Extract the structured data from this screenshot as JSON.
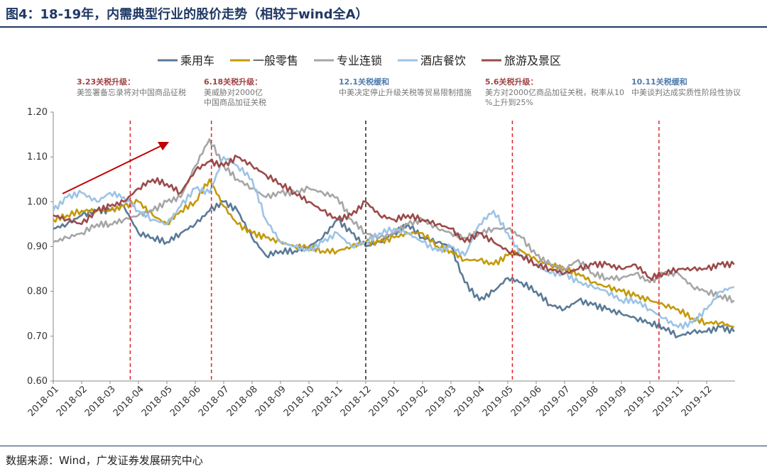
{
  "title": "图4：18-19年，内需典型行业的股价走势（相较于wind全A）",
  "source": "数据来源：Wind，广发证券发展研究中心",
  "chart_data": {
    "type": "line",
    "title": "图4：18-19年，内需典型行业的股价走势（相较于wind全A）",
    "xlabel": "",
    "ylabel": "",
    "ylim": [
      0.6,
      1.2
    ],
    "yticks": [
      "0.60",
      "0.70",
      "0.80",
      "0.90",
      "1.00",
      "1.10",
      "1.20"
    ],
    "xticks": [
      "2018-01",
      "2018-02",
      "2018-03",
      "2018-04",
      "2018-05",
      "2018-06",
      "2018-07",
      "2018-08",
      "2018-09",
      "2018-10",
      "2018-11",
      "2018-12",
      "2019-01",
      "2019-02",
      "2019-03",
      "2019-04",
      "2019-05",
      "2019-06",
      "2019-07",
      "2019-08",
      "2019-09",
      "2019-10",
      "2019-11",
      "2019-12"
    ],
    "grid": false,
    "legend_position": "top",
    "x": [
      "2018-01-01",
      "2018-01-16",
      "2018-02-01",
      "2018-02-16",
      "2018-03-01",
      "2018-03-16",
      "2018-04-01",
      "2018-04-16",
      "2018-05-01",
      "2018-05-16",
      "2018-06-01",
      "2018-06-16",
      "2018-07-01",
      "2018-07-16",
      "2018-08-01",
      "2018-08-16",
      "2018-09-01",
      "2018-09-16",
      "2018-10-01",
      "2018-10-16",
      "2018-11-01",
      "2018-11-16",
      "2018-12-01",
      "2018-12-16",
      "2019-01-01",
      "2019-01-16",
      "2019-02-01",
      "2019-02-16",
      "2019-03-01",
      "2019-03-16",
      "2019-04-01",
      "2019-04-16",
      "2019-05-01",
      "2019-05-16",
      "2019-06-01",
      "2019-06-16",
      "2019-07-01",
      "2019-07-16",
      "2019-08-01",
      "2019-08-16",
      "2019-09-01",
      "2019-09-16",
      "2019-10-01",
      "2019-10-16",
      "2019-11-01",
      "2019-11-16",
      "2019-12-01",
      "2019-12-16",
      "2019-12-31"
    ],
    "series": [
      {
        "name": "乘用车",
        "color": "#5a7a96",
        "values": [
          0.94,
          0.95,
          0.97,
          0.98,
          0.98,
          0.99,
          0.93,
          0.92,
          0.91,
          0.93,
          0.95,
          0.98,
          1.0,
          0.98,
          0.92,
          0.88,
          0.89,
          0.89,
          0.9,
          0.92,
          0.96,
          0.93,
          0.9,
          0.91,
          0.93,
          0.95,
          0.92,
          0.91,
          0.9,
          0.82,
          0.78,
          0.8,
          0.83,
          0.82,
          0.8,
          0.77,
          0.76,
          0.78,
          0.77,
          0.76,
          0.75,
          0.74,
          0.73,
          0.72,
          0.7,
          0.71,
          0.71,
          0.72,
          0.71
        ]
      },
      {
        "name": "一般零售",
        "color": "#c49a0a",
        "values": [
          0.96,
          0.97,
          0.98,
          0.98,
          0.98,
          0.99,
          1.0,
          0.97,
          0.95,
          0.98,
          1.0,
          1.05,
          0.99,
          0.95,
          0.93,
          0.92,
          0.91,
          0.9,
          0.9,
          0.89,
          0.89,
          0.9,
          0.91,
          0.91,
          0.92,
          0.93,
          0.93,
          0.9,
          0.89,
          0.87,
          0.87,
          0.86,
          0.88,
          0.89,
          0.87,
          0.86,
          0.85,
          0.84,
          0.82,
          0.81,
          0.8,
          0.79,
          0.78,
          0.77,
          0.76,
          0.74,
          0.73,
          0.73,
          0.72
        ]
      },
      {
        "name": "专业连锁",
        "color": "#a6a6a6",
        "values": [
          0.91,
          0.92,
          0.93,
          0.95,
          0.95,
          0.96,
          0.97,
          0.98,
          1.0,
          1.01,
          1.08,
          1.14,
          1.08,
          1.05,
          1.03,
          1.01,
          1.02,
          1.02,
          1.03,
          1.02,
          1.01,
          0.96,
          0.93,
          0.92,
          0.93,
          0.95,
          0.96,
          0.94,
          0.93,
          0.92,
          0.93,
          0.94,
          0.94,
          0.92,
          0.88,
          0.86,
          0.85,
          0.87,
          0.84,
          0.83,
          0.83,
          0.84,
          0.82,
          0.84,
          0.84,
          0.81,
          0.8,
          0.79,
          0.78
        ]
      },
      {
        "name": "酒店餐饮",
        "color": "#9dc3e6",
        "values": [
          0.98,
          1.01,
          1.02,
          1.0,
          1.02,
          1.01,
          0.98,
          0.96,
          0.95,
          0.99,
          1.03,
          1.02,
          1.1,
          1.08,
          1.05,
          0.96,
          0.91,
          0.9,
          0.89,
          0.91,
          0.93,
          0.9,
          0.91,
          0.93,
          0.94,
          0.93,
          0.91,
          0.89,
          0.9,
          0.88,
          0.95,
          0.98,
          0.93,
          0.88,
          0.86,
          0.84,
          0.84,
          0.82,
          0.81,
          0.8,
          0.78,
          0.78,
          0.76,
          0.74,
          0.72,
          0.73,
          0.76,
          0.8,
          0.81
        ]
      },
      {
        "name": "旅游及景区",
        "color": "#9b4a4a",
        "values": [
          0.97,
          0.96,
          0.95,
          0.98,
          0.99,
          1.0,
          1.03,
          1.05,
          1.04,
          1.02,
          1.07,
          1.09,
          1.08,
          1.1,
          1.08,
          1.06,
          1.04,
          1.02,
          1.0,
          0.98,
          0.96,
          0.97,
          1.0,
          0.97,
          0.96,
          0.97,
          0.96,
          0.95,
          0.94,
          0.91,
          0.93,
          0.91,
          0.89,
          0.88,
          0.86,
          0.85,
          0.84,
          0.85,
          0.86,
          0.86,
          0.85,
          0.86,
          0.83,
          0.84,
          0.85,
          0.85,
          0.85,
          0.86,
          0.86
        ]
      }
    ],
    "events": [
      {
        "date": "2018-03-23",
        "line_color": "#d9272e",
        "title": "3.23关税升级：",
        "title_color": "#a04343",
        "body": [
          "美签署备忘录将对中国商品征税"
        ]
      },
      {
        "date": "2018-06-18",
        "line_color": "#d9272e",
        "title": "6.18关税升级：",
        "title_color": "#a04343",
        "body": [
          "美威胁对2000亿",
          "中国商品加征关税"
        ]
      },
      {
        "date": "2018-12-01",
        "line_color": "#222222",
        "title": "12.1关税缓和",
        "title_color": "#4f7bab",
        "body": [
          "中美决定停止升级关税等贸易限制措施"
        ]
      },
      {
        "date": "2019-05-06",
        "line_color": "#d9272e",
        "title": "5.6关税升级：",
        "title_color": "#a04343",
        "body": [
          "美方对2000亿商品加征关税，税率从10%上升到25%"
        ]
      },
      {
        "date": "2019-10-11",
        "line_color": "#d9272e",
        "title": "10.11关税缓和",
        "title_color": "#4f7bab",
        "body": [
          "中美谈判达成实质性阶段性协议"
        ]
      }
    ]
  }
}
